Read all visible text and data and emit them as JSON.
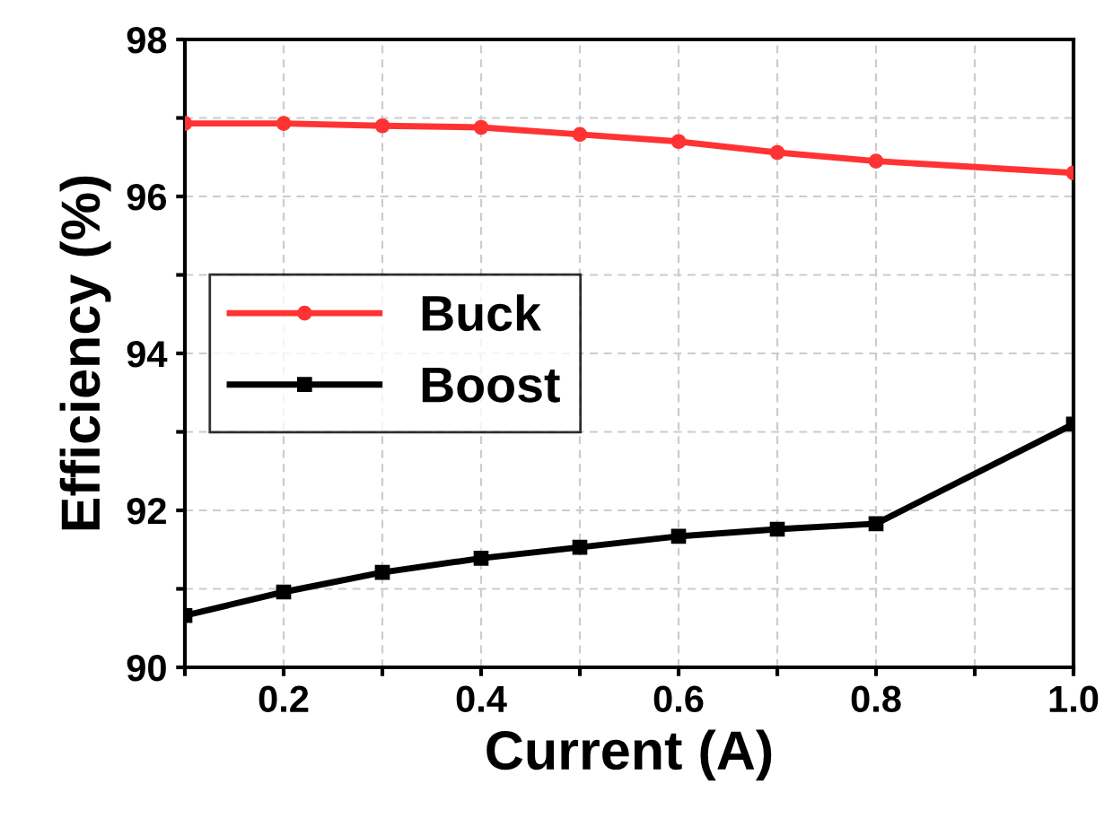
{
  "chart_data": {
    "type": "line",
    "xlabel": "Current (A)",
    "ylabel": "Efficiency (%)",
    "x": [
      0.1,
      0.2,
      0.3,
      0.4,
      0.5,
      0.6,
      0.7,
      0.8,
      1.0
    ],
    "series": [
      {
        "name": "Buck",
        "color": "#ff3333",
        "marker": "circle",
        "values": [
          96.93,
          96.93,
          96.9,
          96.88,
          96.79,
          96.7,
          96.56,
          96.45,
          96.3
        ]
      },
      {
        "name": "Boost",
        "color": "#000000",
        "marker": "square",
        "values": [
          90.66,
          90.96,
          91.21,
          91.39,
          91.53,
          91.67,
          91.76,
          91.83,
          93.1
        ]
      }
    ],
    "xlim": [
      0.1,
      1.0
    ],
    "ylim": [
      90,
      98
    ],
    "xticks": [
      {
        "value": 0.1,
        "label": null
      },
      {
        "value": 0.2,
        "label": "0.2"
      },
      {
        "value": 0.3,
        "label": null
      },
      {
        "value": 0.4,
        "label": "0.4"
      },
      {
        "value": 0.5,
        "label": null
      },
      {
        "value": 0.6,
        "label": "0.6"
      },
      {
        "value": 0.7,
        "label": null
      },
      {
        "value": 0.8,
        "label": "0.8"
      },
      {
        "value": 0.9,
        "label": null
      },
      {
        "value": 1.0,
        "label": "1.0"
      }
    ],
    "yticks": [
      90,
      {
        "value": 91,
        "label": null
      },
      92,
      {
        "value": 93,
        "label": null
      },
      94,
      {
        "value": 95,
        "label": null
      },
      96,
      {
        "value": 97,
        "label": null
      },
      98
    ],
    "grid": true,
    "legend": "left",
    "line_style": "solid"
  }
}
